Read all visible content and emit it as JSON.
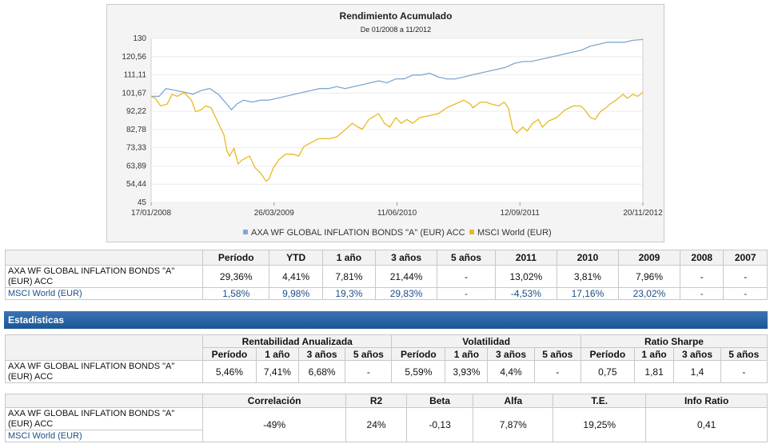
{
  "chart_data": {
    "type": "line",
    "title": "Rendimiento Acumulado",
    "subtitle": "De 01/2008 a 11/2012",
    "y_ticks": [
      "130",
      "120,56",
      "111,11",
      "101,67",
      "92,22",
      "82,78",
      "73,33",
      "63,89",
      "54,44",
      "45"
    ],
    "ylim": [
      45,
      130
    ],
    "x_ticks": [
      "17/01/2008",
      "26/03/2009",
      "11/06/2010",
      "12/09/2011",
      "20/11/2012"
    ],
    "xlim": [
      "2008-01-17",
      "2012-11-20"
    ],
    "colors": {
      "axa": "#7ea8d2",
      "msci": "#e8b923"
    },
    "series": [
      {
        "name": "AXA WF GLOBAL INFLATION BONDS \"A\" (EUR) ACC",
        "color": "#7ea8d2",
        "points": [
          [
            "2008-01-17",
            100
          ],
          [
            "2008-02-15",
            100
          ],
          [
            "2008-03-10",
            104
          ],
          [
            "2008-04-15",
            103
          ],
          [
            "2008-05-20",
            102
          ],
          [
            "2008-06-15",
            101
          ],
          [
            "2008-07-15",
            103
          ],
          [
            "2008-08-15",
            104
          ],
          [
            "2008-09-15",
            101
          ],
          [
            "2008-10-15",
            96
          ],
          [
            "2008-11-01",
            93
          ],
          [
            "2008-11-20",
            96
          ],
          [
            "2008-12-15",
            98
          ],
          [
            "2009-01-15",
            97
          ],
          [
            "2009-02-15",
            98
          ],
          [
            "2009-03-15",
            98
          ],
          [
            "2009-04-15",
            99
          ],
          [
            "2009-05-15",
            100
          ],
          [
            "2009-06-15",
            101
          ],
          [
            "2009-07-15",
            102
          ],
          [
            "2009-08-15",
            103
          ],
          [
            "2009-09-15",
            104
          ],
          [
            "2009-10-15",
            104
          ],
          [
            "2009-11-15",
            105
          ],
          [
            "2009-12-15",
            104
          ],
          [
            "2010-01-15",
            105
          ],
          [
            "2010-02-15",
            106
          ],
          [
            "2010-03-15",
            107
          ],
          [
            "2010-04-15",
            108
          ],
          [
            "2010-05-15",
            107
          ],
          [
            "2010-06-15",
            109
          ],
          [
            "2010-07-15",
            109
          ],
          [
            "2010-08-15",
            111
          ],
          [
            "2010-09-15",
            111
          ],
          [
            "2010-10-15",
            112
          ],
          [
            "2010-11-15",
            110
          ],
          [
            "2010-12-15",
            109
          ],
          [
            "2011-01-15",
            109
          ],
          [
            "2011-02-15",
            110
          ],
          [
            "2011-03-15",
            111
          ],
          [
            "2011-04-15",
            112
          ],
          [
            "2011-05-15",
            113
          ],
          [
            "2011-06-15",
            114
          ],
          [
            "2011-07-15",
            115
          ],
          [
            "2011-08-15",
            117
          ],
          [
            "2011-09-15",
            118
          ],
          [
            "2011-10-15",
            118
          ],
          [
            "2011-11-15",
            119
          ],
          [
            "2011-12-15",
            120
          ],
          [
            "2012-01-15",
            121
          ],
          [
            "2012-02-15",
            122
          ],
          [
            "2012-03-15",
            123
          ],
          [
            "2012-04-15",
            124
          ],
          [
            "2012-05-15",
            126
          ],
          [
            "2012-06-15",
            127
          ],
          [
            "2012-07-15",
            128
          ],
          [
            "2012-08-15",
            128
          ],
          [
            "2012-09-15",
            128
          ],
          [
            "2012-10-15",
            129
          ],
          [
            "2012-11-20",
            129.4
          ]
        ]
      },
      {
        "name": "MSCI World (EUR)",
        "color": "#e8b923",
        "points": [
          [
            "2008-01-17",
            100
          ],
          [
            "2008-02-01",
            99
          ],
          [
            "2008-02-20",
            95
          ],
          [
            "2008-03-15",
            96
          ],
          [
            "2008-04-01",
            101
          ],
          [
            "2008-04-20",
            100
          ],
          [
            "2008-05-15",
            102
          ],
          [
            "2008-06-10",
            98
          ],
          [
            "2008-06-25",
            92
          ],
          [
            "2008-07-15",
            93
          ],
          [
            "2008-08-01",
            95
          ],
          [
            "2008-08-20",
            94
          ],
          [
            "2008-09-15",
            86
          ],
          [
            "2008-10-05",
            80
          ],
          [
            "2008-10-15",
            72
          ],
          [
            "2008-10-25",
            69
          ],
          [
            "2008-11-10",
            73
          ],
          [
            "2008-11-25",
            65
          ],
          [
            "2008-12-10",
            67
          ],
          [
            "2009-01-05",
            69
          ],
          [
            "2009-01-25",
            63
          ],
          [
            "2009-02-15",
            60
          ],
          [
            "2009-03-05",
            56
          ],
          [
            "2009-03-15",
            57
          ],
          [
            "2009-04-01",
            63
          ],
          [
            "2009-04-20",
            67
          ],
          [
            "2009-05-15",
            70
          ],
          [
            "2009-06-10",
            70
          ],
          [
            "2009-07-01",
            69
          ],
          [
            "2009-07-20",
            74
          ],
          [
            "2009-08-15",
            76
          ],
          [
            "2009-09-10",
            78
          ],
          [
            "2009-10-01",
            78
          ],
          [
            "2009-10-20",
            78
          ],
          [
            "2009-11-15",
            79
          ],
          [
            "2009-12-10",
            82
          ],
          [
            "2010-01-10",
            86
          ],
          [
            "2010-01-30",
            84
          ],
          [
            "2010-02-15",
            83
          ],
          [
            "2010-03-10",
            88
          ],
          [
            "2010-04-15",
            91
          ],
          [
            "2010-05-05",
            86
          ],
          [
            "2010-05-25",
            84
          ],
          [
            "2010-06-15",
            89
          ],
          [
            "2010-07-05",
            86
          ],
          [
            "2010-07-25",
            88
          ],
          [
            "2010-08-15",
            86
          ],
          [
            "2010-09-10",
            89
          ],
          [
            "2010-10-15",
            90
          ],
          [
            "2010-11-15",
            91
          ],
          [
            "2010-12-15",
            94
          ],
          [
            "2011-01-15",
            96
          ],
          [
            "2011-02-15",
            98
          ],
          [
            "2011-03-10",
            96
          ],
          [
            "2011-03-20",
            94
          ],
          [
            "2011-04-15",
            97
          ],
          [
            "2011-05-05",
            97
          ],
          [
            "2011-05-25",
            96
          ],
          [
            "2011-06-20",
            95
          ],
          [
            "2011-07-10",
            97
          ],
          [
            "2011-07-25",
            94
          ],
          [
            "2011-08-10",
            83
          ],
          [
            "2011-08-25",
            81
          ],
          [
            "2011-09-15",
            84
          ],
          [
            "2011-10-01",
            82
          ],
          [
            "2011-10-20",
            86
          ],
          [
            "2011-11-10",
            88
          ],
          [
            "2011-11-25",
            84
          ],
          [
            "2011-12-15",
            87
          ],
          [
            "2012-01-15",
            89
          ],
          [
            "2012-02-15",
            93
          ],
          [
            "2012-03-15",
            95
          ],
          [
            "2012-04-10",
            95
          ],
          [
            "2012-04-25",
            93
          ],
          [
            "2012-05-15",
            89
          ],
          [
            "2012-06-01",
            88
          ],
          [
            "2012-06-20",
            92
          ],
          [
            "2012-07-10",
            94
          ],
          [
            "2012-07-25",
            96
          ],
          [
            "2012-08-15",
            98
          ],
          [
            "2012-09-10",
            101
          ],
          [
            "2012-09-25",
            99
          ],
          [
            "2012-10-15",
            101
          ],
          [
            "2012-11-01",
            100
          ],
          [
            "2012-11-20",
            102
          ]
        ]
      }
    ],
    "legend": "bottom"
  },
  "perf_table": {
    "headers": [
      "Período",
      "YTD",
      "1 año",
      "3 años",
      "5 años",
      "2011",
      "2010",
      "2009",
      "2008",
      "2007"
    ],
    "rows": [
      {
        "name": "AXA WF GLOBAL INFLATION BONDS \"A\" (EUR) ACC",
        "values": [
          "29,36%",
          "4,41%",
          "7,81%",
          "21,44%",
          "-",
          "13,02%",
          "3,81%",
          "7,96%",
          "-",
          "-"
        ]
      },
      {
        "name": "MSCI World (EUR)",
        "values": [
          "1,58%",
          "9,98%",
          "19,3%",
          "29,83%",
          "-",
          "-4,53%",
          "17,16%",
          "23,02%",
          "-",
          "-"
        ]
      }
    ]
  },
  "section_title": "Estadísticas",
  "stats_table": {
    "groups": [
      "Rentabilidad Anualizada",
      "Volatilidad",
      "Ratio Sharpe"
    ],
    "subheaders": [
      "Período",
      "1 año",
      "3 años",
      "5 años"
    ],
    "row": {
      "name": "AXA WF GLOBAL INFLATION BONDS \"A\" (EUR) ACC",
      "values": [
        "5,46%",
        "7,41%",
        "6,68%",
        "-",
        "5,59%",
        "3,93%",
        "4,4%",
        "-",
        "0,75",
        "1,81",
        "1,4",
        "-"
      ]
    }
  },
  "corr_table": {
    "headers": [
      "Correlación",
      "R2",
      "Beta",
      "Alfa",
      "T.E.",
      "Info Ratio"
    ],
    "fund": "AXA WF GLOBAL INFLATION BONDS \"A\" (EUR) ACC",
    "benchmark": "MSCI World (EUR)",
    "values": [
      "-49%",
      "24%",
      "-0,13",
      "7,87%",
      "19,25%",
      "0,41"
    ]
  }
}
